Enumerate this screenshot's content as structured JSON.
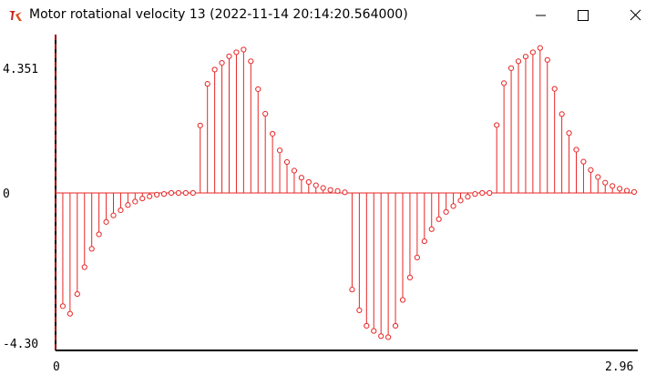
{
  "window": {
    "title": "Motor rotational velocity 13 (2022-11-14 20:14:20.564000)",
    "app_icon": "tk-feather-icon",
    "controls": [
      "minimize-icon",
      "maximize-icon",
      "close-icon"
    ]
  },
  "colors": {
    "stem": "#e82626",
    "axis": "#000000",
    "zero_axis": "#c00000"
  },
  "chart_data": {
    "type": "stem",
    "title": "",
    "xlabel": "",
    "ylabel": "",
    "xlim": [
      0,
      2.96
    ],
    "ylim": [
      -4.3,
      4.351
    ],
    "x_tick_labels": [
      "0",
      "2.96"
    ],
    "y_tick_labels": [
      "4.351",
      "0",
      "-4.30"
    ],
    "grid": false,
    "legend": "none",
    "x": [
      0.037,
      0.074,
      0.111,
      0.148,
      0.185,
      0.222,
      0.259,
      0.296,
      0.333,
      0.37,
      0.407,
      0.444,
      0.481,
      0.518,
      0.555,
      0.592,
      0.629,
      0.666,
      0.703,
      0.74,
      0.777,
      0.814,
      0.851,
      0.888,
      0.925,
      0.962,
      0.999,
      1.036,
      1.073,
      1.11,
      1.147,
      1.184,
      1.221,
      1.258,
      1.295,
      1.332,
      1.369,
      1.406,
      1.443,
      1.48,
      1.517,
      1.554,
      1.591,
      1.628,
      1.665,
      1.702,
      1.739,
      1.776,
      1.813,
      1.85,
      1.887,
      1.924,
      1.961,
      1.998,
      2.035,
      2.072,
      2.109,
      2.146,
      2.183,
      2.22,
      2.257,
      2.294,
      2.331,
      2.368,
      2.405,
      2.442,
      2.479,
      2.516,
      2.553,
      2.59,
      2.627,
      2.664,
      2.701,
      2.738,
      2.775,
      2.812,
      2.849,
      2.886,
      2.923,
      2.96
    ],
    "values": [
      -3.28,
      -3.5,
      -2.93,
      -2.15,
      -1.62,
      -1.2,
      -0.84,
      -0.65,
      -0.5,
      -0.35,
      -0.25,
      -0.16,
      -0.1,
      -0.05,
      -0.03,
      0.0,
      0.0,
      0.0,
      0.0,
      2.03,
      3.28,
      3.71,
      3.91,
      4.11,
      4.23,
      4.31,
      3.96,
      3.12,
      2.38,
      1.78,
      1.28,
      0.93,
      0.67,
      0.46,
      0.33,
      0.23,
      0.15,
      0.09,
      0.06,
      0.02,
      -2.8,
      -3.4,
      -3.85,
      -4.0,
      -4.15,
      -4.18,
      -3.85,
      -3.1,
      -2.45,
      -1.87,
      -1.4,
      -1.05,
      -0.76,
      -0.55,
      -0.38,
      -0.22,
      -0.11,
      -0.03,
      0.0,
      0.0,
      2.04,
      3.3,
      3.75,
      3.96,
      4.1,
      4.23,
      4.36,
      4.0,
      3.13,
      2.37,
      1.8,
      1.3,
      0.94,
      0.69,
      0.48,
      0.31,
      0.21,
      0.13,
      0.07,
      0.03
    ]
  }
}
